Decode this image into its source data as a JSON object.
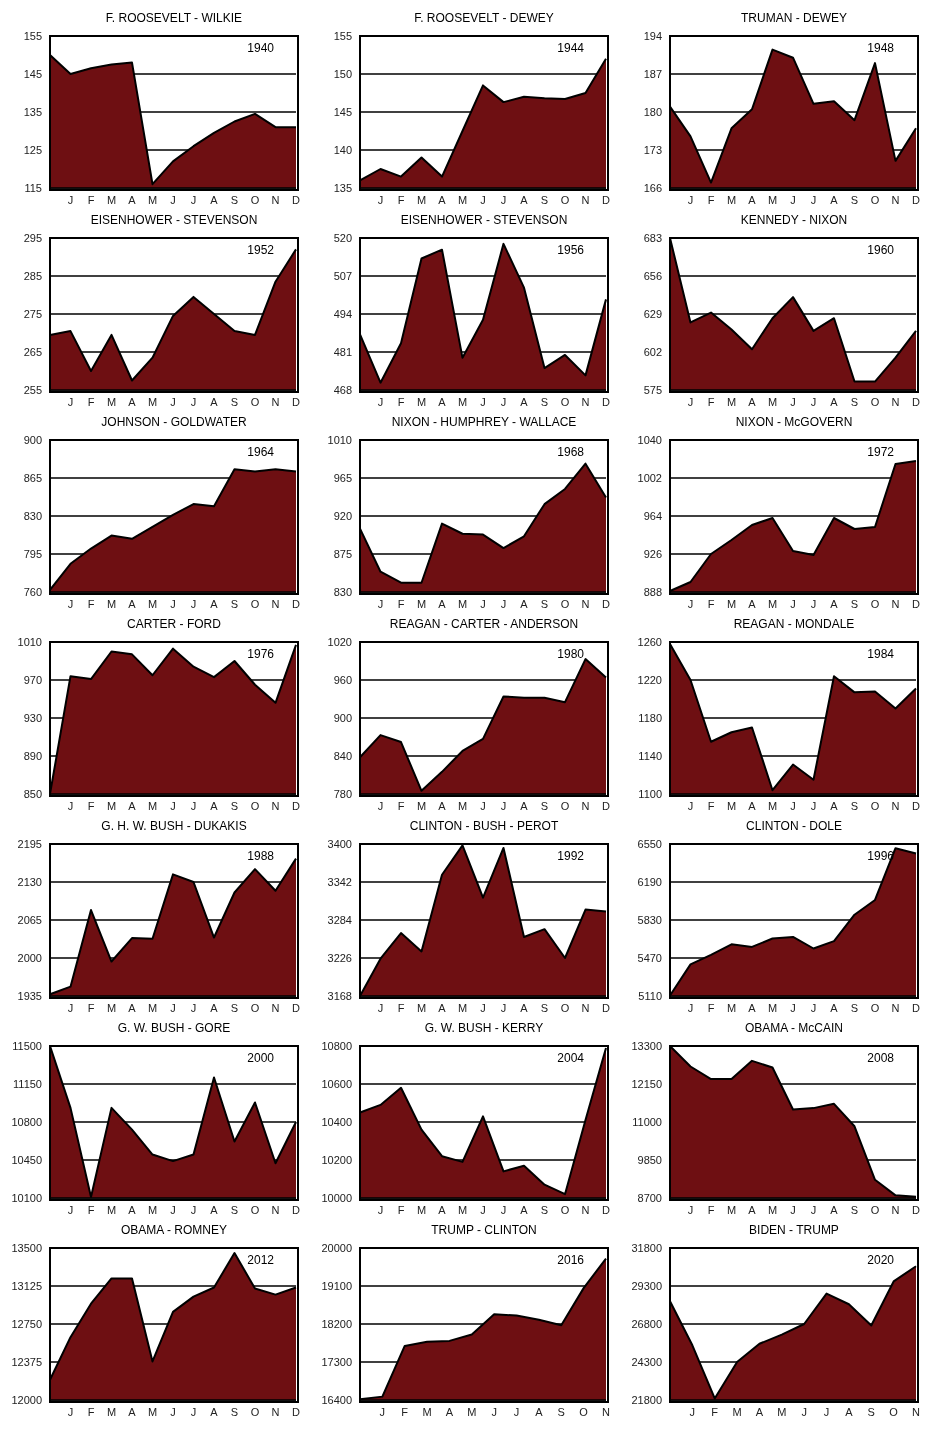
{
  "chart_data": [
    {
      "type": "area",
      "title": "F. ROOSEVELT - WILKIE",
      "categories": [
        null,
        "J",
        "F",
        "M",
        "A",
        "M",
        "J",
        "J",
        "A",
        "S",
        "O",
        "N",
        "D"
      ],
      "values": [
        150,
        145,
        146.5,
        147.5,
        148,
        116,
        122,
        126,
        129.5,
        132.5,
        134.5,
        131,
        131
      ],
      "color": "#6e0f12",
      "ylim": [
        115,
        155
      ],
      "yticks": [
        115,
        125,
        135,
        145,
        155
      ],
      "grid": "y",
      "annotations": [
        "1940"
      ]
    },
    {
      "type": "area",
      "title": "F. ROOSEVELT - DEWEY",
      "categories": [
        null,
        "J",
        "F",
        "M",
        "A",
        "M",
        "J",
        "J",
        "A",
        "S",
        "O",
        "N",
        "D"
      ],
      "values": [
        136,
        137.5,
        136.5,
        139,
        136.5,
        142.5,
        148.5,
        146.3,
        147,
        146.8,
        146.7,
        147.5,
        152
      ],
      "color": "#6e0f12",
      "ylim": [
        135,
        155
      ],
      "yticks": [
        135,
        140,
        145,
        150,
        155
      ],
      "grid": "y",
      "annotations": [
        "1944"
      ]
    },
    {
      "type": "area",
      "title": "TRUMAN - DEWEY",
      "categories": [
        null,
        "J",
        "F",
        "M",
        "A",
        "M",
        "J",
        "J",
        "A",
        "S",
        "O",
        "N",
        "D"
      ],
      "values": [
        181,
        175.5,
        167,
        177,
        180.5,
        191.5,
        190,
        181.5,
        182,
        178.5,
        189,
        171,
        177
      ],
      "color": "#6e0f12",
      "ylim": [
        166,
        194
      ],
      "yticks": [
        166,
        173,
        180,
        187,
        194
      ],
      "grid": "y",
      "annotations": [
        "1948"
      ]
    },
    {
      "type": "area",
      "title": "EISENHOWER - STEVENSON",
      "categories": [
        null,
        "J",
        "F",
        "M",
        "A",
        "M",
        "J",
        "J",
        "A",
        "S",
        "O",
        "N",
        "D"
      ],
      "values": [
        269.5,
        270.5,
        260,
        269.5,
        257.5,
        263.5,
        274.5,
        279.5,
        275,
        270.5,
        269.5,
        283.5,
        292
      ],
      "color": "#6e0f12",
      "ylim": [
        255,
        295
      ],
      "yticks": [
        255,
        265,
        275,
        285,
        295
      ],
      "grid": "y",
      "annotations": [
        "1952"
      ]
    },
    {
      "type": "area",
      "title": "EISENHOWER  - STEVENSON",
      "categories": [
        null,
        "J",
        "F",
        "M",
        "A",
        "M",
        "J",
        "J",
        "A",
        "S",
        "O",
        "N",
        "D"
      ],
      "values": [
        487,
        470.5,
        484,
        513,
        516,
        479,
        492,
        518,
        503,
        475.5,
        480,
        473,
        499
      ],
      "color": "#6e0f12",
      "ylim": [
        468,
        520
      ],
      "yticks": [
        468,
        481,
        494,
        507,
        520
      ],
      "grid": "y",
      "annotations": [
        "1956"
      ]
    },
    {
      "type": "area",
      "title": "KENNEDY - NIXON",
      "categories": [
        null,
        "J",
        "F",
        "M",
        "A",
        "M",
        "J",
        "J",
        "A",
        "S",
        "O",
        "N",
        "D"
      ],
      "values": [
        683,
        623,
        630,
        618,
        604,
        626,
        641,
        617,
        626,
        581,
        581,
        598,
        617
      ],
      "color": "#6e0f12",
      "ylim": [
        575,
        683
      ],
      "yticks": [
        575,
        602,
        629,
        656,
        683
      ],
      "grid": "y",
      "annotations": [
        "1960"
      ]
    },
    {
      "type": "area",
      "title": "JOHNSON - GOLDWATER",
      "categories": [
        null,
        "J",
        "F",
        "M",
        "A",
        "M",
        "J",
        "J",
        "A",
        "S",
        "O",
        "N",
        "D"
      ],
      "values": [
        762,
        786,
        800,
        812,
        809,
        820,
        831,
        841,
        839,
        873,
        871,
        873,
        871
      ],
      "color": "#6e0f12",
      "ylim": [
        760,
        900
      ],
      "yticks": [
        760,
        795,
        830,
        865,
        900
      ],
      "grid": "y",
      "annotations": [
        "1964"
      ]
    },
    {
      "type": "area",
      "title": "NIXON  - HUMPHREY - WALLACE",
      "categories": [
        null,
        "J",
        "F",
        "M",
        "A",
        "M",
        "J",
        "J",
        "A",
        "S",
        "O",
        "N",
        "D"
      ],
      "values": [
        905,
        854,
        841,
        841,
        911,
        899,
        898,
        882,
        896,
        934,
        952,
        982,
        942
      ],
      "color": "#6e0f12",
      "ylim": [
        830,
        1010
      ],
      "yticks": [
        830,
        875,
        920,
        965,
        1010
      ],
      "grid": "y",
      "annotations": [
        "1968"
      ]
    },
    {
      "type": "area",
      "title": "NIXON - McGOVERN",
      "categories": [
        null,
        "J",
        "F",
        "M",
        "A",
        "M",
        "J",
        "J",
        "A",
        "S",
        "O",
        "N",
        "D"
      ],
      "values": [
        889,
        898,
        926,
        940,
        955,
        962,
        929,
        925,
        962,
        951,
        953,
        1016,
        1019
      ],
      "color": "#6e0f12",
      "ylim": [
        888,
        1040
      ],
      "yticks": [
        888,
        926,
        964,
        1002,
        1040
      ],
      "grid": "y",
      "annotations": [
        "1972"
      ]
    },
    {
      "type": "area",
      "title": "CARTER - FORD",
      "categories": [
        null,
        "J",
        "F",
        "M",
        "A",
        "M",
        "J",
        "J",
        "A",
        "S",
        "O",
        "N",
        "D"
      ],
      "values": [
        850,
        974,
        971,
        1000,
        997,
        975,
        1003,
        984,
        973,
        990,
        965,
        946,
        1007
      ],
      "color": "#6e0f12",
      "ylim": [
        850,
        1010
      ],
      "yticks": [
        850,
        890,
        930,
        970,
        1010
      ],
      "grid": "y",
      "annotations": [
        "1976"
      ]
    },
    {
      "type": "area",
      "title": "REAGAN - CARTER - ANDERSON",
      "categories": [
        null,
        "J",
        "F",
        "M",
        "A",
        "M",
        "J",
        "J",
        "A",
        "S",
        "O",
        "N",
        "D"
      ],
      "values": [
        838,
        873,
        862,
        785,
        815,
        848,
        867,
        934,
        932,
        932,
        925,
        993,
        964
      ],
      "color": "#6e0f12",
      "ylim": [
        780,
        1020
      ],
      "yticks": [
        780,
        840,
        900,
        960,
        1020
      ],
      "grid": "y",
      "annotations": [
        "1980"
      ]
    },
    {
      "type": "area",
      "title": "REAGAN - MONDALE",
      "categories": [
        null,
        "J",
        "F",
        "M",
        "A",
        "M",
        "J",
        "J",
        "A",
        "S",
        "O",
        "N",
        "D"
      ],
      "values": [
        1258,
        1220,
        1155,
        1165,
        1170,
        1104,
        1131,
        1115,
        1224,
        1207,
        1208,
        1190,
        1211
      ],
      "color": "#6e0f12",
      "ylim": [
        1100,
        1260
      ],
      "yticks": [
        1100,
        1140,
        1180,
        1220,
        1260
      ],
      "grid": "y",
      "annotations": [
        "1984"
      ]
    },
    {
      "type": "area",
      "title": "G. H. W. BUSH  - DUKAKIS",
      "categories": [
        null,
        "J",
        "F",
        "M",
        "A",
        "M",
        "J",
        "J",
        "A",
        "S",
        "O",
        "N",
        "D"
      ],
      "values": [
        1938,
        1951,
        2082,
        1994,
        2034,
        2033,
        2143,
        2130,
        2035,
        2112,
        2152,
        2115,
        2170
      ],
      "color": "#6e0f12",
      "ylim": [
        1935,
        2195
      ],
      "yticks": [
        1935,
        2000,
        2065,
        2130,
        2195
      ],
      "grid": "y",
      "annotations": [
        "1988"
      ]
    },
    {
      "type": "area",
      "title": "CLINTON -  BUSH  - PEROT",
      "categories": [
        null,
        "J",
        "F",
        "M",
        "A",
        "M",
        "J",
        "J",
        "A",
        "S",
        "O",
        "N",
        "D"
      ],
      "values": [
        3168,
        3225,
        3264,
        3236,
        3353,
        3398,
        3318,
        3394,
        3258,
        3270,
        3226,
        3300,
        3297
      ],
      "color": "#6e0f12",
      "ylim": [
        3168,
        3400
      ],
      "yticks": [
        3168,
        3226,
        3284,
        3342,
        3400
      ],
      "grid": "y",
      "annotations": [
        "1992"
      ]
    },
    {
      "type": "area",
      "title": "CLINTON - DOLE",
      "categories": [
        null,
        "J",
        "F",
        "M",
        "A",
        "M",
        "J",
        "J",
        "A",
        "S",
        "O",
        "N",
        "D"
      ],
      "values": [
        5115,
        5410,
        5500,
        5600,
        5575,
        5655,
        5670,
        5560,
        5630,
        5880,
        6020,
        6510,
        6460
      ],
      "color": "#6e0f12",
      "ylim": [
        5110,
        6550
      ],
      "yticks": [
        5110,
        5470,
        5830,
        6190,
        6550
      ],
      "grid": "y",
      "annotations": [
        "1996"
      ]
    },
    {
      "type": "area",
      "title": "G. W. BUSH  - GORE",
      "categories": [
        null,
        "J",
        "F",
        "M",
        "A",
        "M",
        "J",
        "J",
        "A",
        "S",
        "O",
        "N",
        "D"
      ],
      "values": [
        11500,
        10930,
        10110,
        10930,
        10730,
        10500,
        10440,
        10500,
        11210,
        10620,
        10980,
        10420,
        10800
      ],
      "color": "#6e0f12",
      "ylim": [
        10100,
        11500
      ],
      "yticks": [
        10100,
        10450,
        10800,
        11150,
        11500
      ],
      "grid": "y",
      "annotations": [
        "2000"
      ]
    },
    {
      "type": "area",
      "title": "G. W. BUSH  - KERRY",
      "categories": [
        null,
        "J",
        "F",
        "M",
        "A",
        "M",
        "J",
        "J",
        "A",
        "S",
        "O",
        "N",
        "D"
      ],
      "values": [
        10450,
        10490,
        10580,
        10360,
        10220,
        10190,
        10430,
        10140,
        10170,
        10070,
        10020,
        10410,
        10790
      ],
      "color": "#6e0f12",
      "ylim": [
        10000,
        10800
      ],
      "yticks": [
        10000,
        10200,
        10400,
        10600,
        10800
      ],
      "grid": "y",
      "annotations": [
        "2004"
      ]
    },
    {
      "type": "area",
      "title": "OBAMA  - McCAIN",
      "categories": [
        null,
        "J",
        "F",
        "M",
        "A",
        "M",
        "J",
        "J",
        "A",
        "S",
        "O",
        "N",
        "D"
      ],
      "values": [
        13300,
        12680,
        12300,
        12300,
        12850,
        12650,
        11380,
        11420,
        11550,
        10870,
        9250,
        8780,
        8740
      ],
      "color": "#6e0f12",
      "ylim": [
        8700,
        13300
      ],
      "yticks": [
        8700,
        9850,
        11000,
        12150,
        13300
      ],
      "grid": "y",
      "annotations": [
        "2008"
      ]
    },
    {
      "type": "area",
      "title": "OBAMA  - ROMNEY",
      "categories": [
        null,
        "J",
        "F",
        "M",
        "A",
        "M",
        "J",
        "J",
        "A",
        "S",
        "O",
        "N",
        "D"
      ],
      "values": [
        12200,
        12620,
        12950,
        13200,
        13200,
        12380,
        12870,
        13020,
        13110,
        13450,
        13100,
        13040,
        13110
      ],
      "color": "#6e0f12",
      "ylim": [
        12000,
        13500
      ],
      "yticks": [
        12000,
        12375,
        12750,
        13125,
        13500
      ],
      "grid": "y",
      "annotations": [
        "2012"
      ]
    },
    {
      "type": "area",
      "title": "TRUMP  - CLINTON",
      "categories": [
        null,
        "J",
        "F",
        "M",
        "A",
        "M",
        "J",
        "J",
        "A",
        "S",
        "O",
        "N"
      ],
      "values": [
        16420,
        16480,
        17680,
        17780,
        17800,
        17950,
        18430,
        18400,
        18300,
        18170,
        19050,
        19750
      ],
      "color": "#6e0f12",
      "ylim": [
        16400,
        20000
      ],
      "yticks": [
        16400,
        17300,
        18200,
        19100,
        20000
      ],
      "grid": "y",
      "annotations": [
        "2016"
      ]
    },
    {
      "type": "area",
      "title": "BIDEN - TRUMP",
      "categories": [
        null,
        "J",
        "F",
        "M",
        "A",
        "M",
        "J",
        "J",
        "A",
        "S",
        "O",
        "N"
      ],
      "values": [
        28300,
        25400,
        21900,
        24300,
        25500,
        26100,
        26800,
        28800,
        28100,
        26700,
        29600,
        30600
      ],
      "color": "#6e0f12",
      "ylim": [
        21800,
        31800
      ],
      "yticks": [
        21800,
        24300,
        26800,
        29300,
        31800
      ],
      "grid": "y",
      "annotations": [
        "2020"
      ]
    }
  ]
}
